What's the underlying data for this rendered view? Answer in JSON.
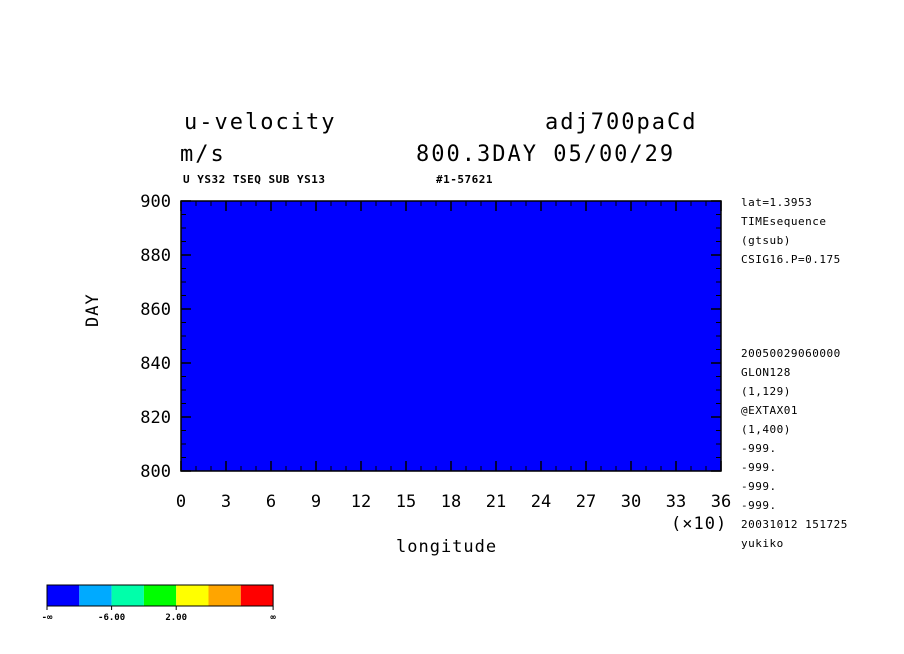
{
  "header": {
    "title_left": "u-velocity",
    "title_right": "adj700paCd",
    "units": "m/s",
    "time_label": "800.3DAY 05/00/29",
    "subtitle_left": "U YS32 TSEQ SUB YS13",
    "subtitle_right": "#1-57621"
  },
  "side_info": {
    "top": [
      "lat=1.3953",
      "TIMEsequence",
      "(gtsub)",
      "CSIG16.P=0.175"
    ],
    "bottom": [
      "20050029060000",
      "GLON128",
      "(1,129)",
      "@EXTAX01",
      "(1,400)",
      "-999.",
      "-999.",
      "-999.",
      "-999.",
      "20031012 151725",
      "yukiko"
    ]
  },
  "chart_data": {
    "type": "heatmap",
    "xlabel": "longitude",
    "ylabel": "DAY",
    "x_multiplier": "(×10)",
    "xlim": [
      0,
      36
    ],
    "ylim": [
      800,
      900
    ],
    "x_ticks": [
      0,
      3,
      6,
      9,
      12,
      15,
      18,
      21,
      24,
      27,
      30,
      33,
      36
    ],
    "y_ticks": [
      800,
      820,
      840,
      860,
      880,
      900
    ],
    "color_levels": [
      "#0000ff",
      "#00aaff",
      "#00ffaa",
      "#00ff00",
      "#ffff00",
      "#ffa500",
      "#ff0000"
    ],
    "colorbar_labels": [
      "-∞",
      "-6.00",
      "2.00",
      "∞"
    ]
  }
}
